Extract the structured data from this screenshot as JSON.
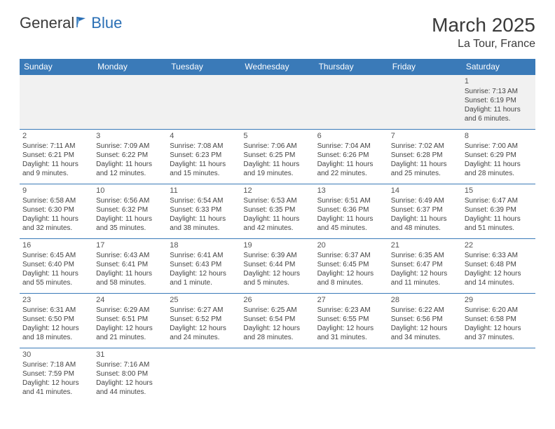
{
  "brand": {
    "part1": "General",
    "part2": "Blue"
  },
  "title": "March 2025",
  "location": "La Tour, France",
  "dayHeaders": [
    "Sunday",
    "Monday",
    "Tuesday",
    "Wednesday",
    "Thursday",
    "Friday",
    "Saturday"
  ],
  "colors": {
    "headerBg": "#3a7ab8",
    "headerText": "#ffffff",
    "border": "#3a7ab8",
    "firstWeekBg": "#f1f1f1",
    "text": "#444444",
    "brandBlue": "#2a6fb5"
  },
  "weeks": [
    [
      null,
      null,
      null,
      null,
      null,
      null,
      {
        "n": "1",
        "sr": "Sunrise: 7:13 AM",
        "ss": "Sunset: 6:19 PM",
        "d1": "Daylight: 11 hours",
        "d2": "and 6 minutes."
      }
    ],
    [
      {
        "n": "2",
        "sr": "Sunrise: 7:11 AM",
        "ss": "Sunset: 6:21 PM",
        "d1": "Daylight: 11 hours",
        "d2": "and 9 minutes."
      },
      {
        "n": "3",
        "sr": "Sunrise: 7:09 AM",
        "ss": "Sunset: 6:22 PM",
        "d1": "Daylight: 11 hours",
        "d2": "and 12 minutes."
      },
      {
        "n": "4",
        "sr": "Sunrise: 7:08 AM",
        "ss": "Sunset: 6:23 PM",
        "d1": "Daylight: 11 hours",
        "d2": "and 15 minutes."
      },
      {
        "n": "5",
        "sr": "Sunrise: 7:06 AM",
        "ss": "Sunset: 6:25 PM",
        "d1": "Daylight: 11 hours",
        "d2": "and 19 minutes."
      },
      {
        "n": "6",
        "sr": "Sunrise: 7:04 AM",
        "ss": "Sunset: 6:26 PM",
        "d1": "Daylight: 11 hours",
        "d2": "and 22 minutes."
      },
      {
        "n": "7",
        "sr": "Sunrise: 7:02 AM",
        "ss": "Sunset: 6:28 PM",
        "d1": "Daylight: 11 hours",
        "d2": "and 25 minutes."
      },
      {
        "n": "8",
        "sr": "Sunrise: 7:00 AM",
        "ss": "Sunset: 6:29 PM",
        "d1": "Daylight: 11 hours",
        "d2": "and 28 minutes."
      }
    ],
    [
      {
        "n": "9",
        "sr": "Sunrise: 6:58 AM",
        "ss": "Sunset: 6:30 PM",
        "d1": "Daylight: 11 hours",
        "d2": "and 32 minutes."
      },
      {
        "n": "10",
        "sr": "Sunrise: 6:56 AM",
        "ss": "Sunset: 6:32 PM",
        "d1": "Daylight: 11 hours",
        "d2": "and 35 minutes."
      },
      {
        "n": "11",
        "sr": "Sunrise: 6:54 AM",
        "ss": "Sunset: 6:33 PM",
        "d1": "Daylight: 11 hours",
        "d2": "and 38 minutes."
      },
      {
        "n": "12",
        "sr": "Sunrise: 6:53 AM",
        "ss": "Sunset: 6:35 PM",
        "d1": "Daylight: 11 hours",
        "d2": "and 42 minutes."
      },
      {
        "n": "13",
        "sr": "Sunrise: 6:51 AM",
        "ss": "Sunset: 6:36 PM",
        "d1": "Daylight: 11 hours",
        "d2": "and 45 minutes."
      },
      {
        "n": "14",
        "sr": "Sunrise: 6:49 AM",
        "ss": "Sunset: 6:37 PM",
        "d1": "Daylight: 11 hours",
        "d2": "and 48 minutes."
      },
      {
        "n": "15",
        "sr": "Sunrise: 6:47 AM",
        "ss": "Sunset: 6:39 PM",
        "d1": "Daylight: 11 hours",
        "d2": "and 51 minutes."
      }
    ],
    [
      {
        "n": "16",
        "sr": "Sunrise: 6:45 AM",
        "ss": "Sunset: 6:40 PM",
        "d1": "Daylight: 11 hours",
        "d2": "and 55 minutes."
      },
      {
        "n": "17",
        "sr": "Sunrise: 6:43 AM",
        "ss": "Sunset: 6:41 PM",
        "d1": "Daylight: 11 hours",
        "d2": "and 58 minutes."
      },
      {
        "n": "18",
        "sr": "Sunrise: 6:41 AM",
        "ss": "Sunset: 6:43 PM",
        "d1": "Daylight: 12 hours",
        "d2": "and 1 minute."
      },
      {
        "n": "19",
        "sr": "Sunrise: 6:39 AM",
        "ss": "Sunset: 6:44 PM",
        "d1": "Daylight: 12 hours",
        "d2": "and 5 minutes."
      },
      {
        "n": "20",
        "sr": "Sunrise: 6:37 AM",
        "ss": "Sunset: 6:45 PM",
        "d1": "Daylight: 12 hours",
        "d2": "and 8 minutes."
      },
      {
        "n": "21",
        "sr": "Sunrise: 6:35 AM",
        "ss": "Sunset: 6:47 PM",
        "d1": "Daylight: 12 hours",
        "d2": "and 11 minutes."
      },
      {
        "n": "22",
        "sr": "Sunrise: 6:33 AM",
        "ss": "Sunset: 6:48 PM",
        "d1": "Daylight: 12 hours",
        "d2": "and 14 minutes."
      }
    ],
    [
      {
        "n": "23",
        "sr": "Sunrise: 6:31 AM",
        "ss": "Sunset: 6:50 PM",
        "d1": "Daylight: 12 hours",
        "d2": "and 18 minutes."
      },
      {
        "n": "24",
        "sr": "Sunrise: 6:29 AM",
        "ss": "Sunset: 6:51 PM",
        "d1": "Daylight: 12 hours",
        "d2": "and 21 minutes."
      },
      {
        "n": "25",
        "sr": "Sunrise: 6:27 AM",
        "ss": "Sunset: 6:52 PM",
        "d1": "Daylight: 12 hours",
        "d2": "and 24 minutes."
      },
      {
        "n": "26",
        "sr": "Sunrise: 6:25 AM",
        "ss": "Sunset: 6:54 PM",
        "d1": "Daylight: 12 hours",
        "d2": "and 28 minutes."
      },
      {
        "n": "27",
        "sr": "Sunrise: 6:23 AM",
        "ss": "Sunset: 6:55 PM",
        "d1": "Daylight: 12 hours",
        "d2": "and 31 minutes."
      },
      {
        "n": "28",
        "sr": "Sunrise: 6:22 AM",
        "ss": "Sunset: 6:56 PM",
        "d1": "Daylight: 12 hours",
        "d2": "and 34 minutes."
      },
      {
        "n": "29",
        "sr": "Sunrise: 6:20 AM",
        "ss": "Sunset: 6:58 PM",
        "d1": "Daylight: 12 hours",
        "d2": "and 37 minutes."
      }
    ],
    [
      {
        "n": "30",
        "sr": "Sunrise: 7:18 AM",
        "ss": "Sunset: 7:59 PM",
        "d1": "Daylight: 12 hours",
        "d2": "and 41 minutes."
      },
      {
        "n": "31",
        "sr": "Sunrise: 7:16 AM",
        "ss": "Sunset: 8:00 PM",
        "d1": "Daylight: 12 hours",
        "d2": "and 44 minutes."
      },
      null,
      null,
      null,
      null,
      null
    ]
  ]
}
